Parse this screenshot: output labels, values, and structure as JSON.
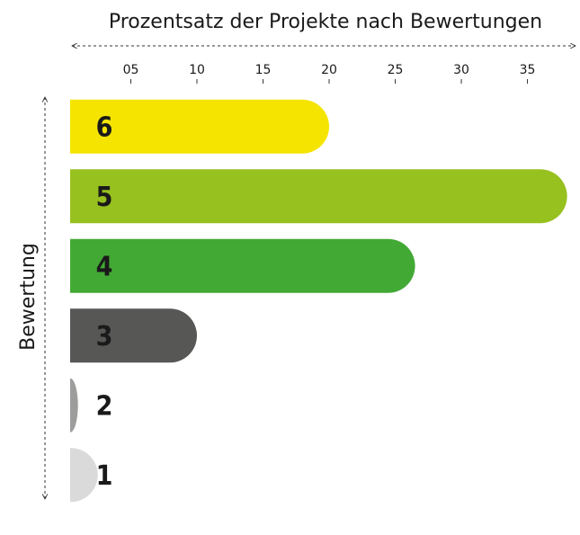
{
  "chart_data": {
    "type": "bar",
    "orientation": "horizontal",
    "title": "Prozentsatz der Projekte nach Bewertungen",
    "y_label": "Bewertung",
    "categories": [
      "6",
      "5",
      "4",
      "3",
      "2",
      "1"
    ],
    "values": [
      20,
      38,
      26.5,
      10,
      1,
      2.5
    ],
    "colors": [
      "#f5e400",
      "#97c11f",
      "#43a935",
      "#575756",
      "#9d9d9c",
      "#dadada"
    ],
    "xlim": [
      0,
      38.5
    ],
    "xticks": [
      {
        "value": 5,
        "label": "05"
      },
      10,
      15,
      20,
      25,
      30,
      35
    ]
  }
}
